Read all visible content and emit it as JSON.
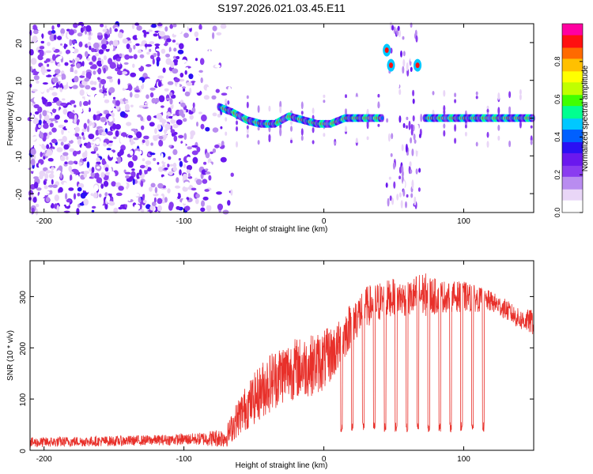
{
  "title": "S197.2026.021.03.45.E11",
  "colors": {
    "snr_line": "#e8302a",
    "cmap": [
      "#ffffff",
      "#e9d6f7",
      "#b98cf0",
      "#8a3cf0",
      "#6a18ee",
      "#2a10f4",
      "#0060ff",
      "#00c8ff",
      "#00ff90",
      "#40ff00",
      "#c0ff00",
      "#ffff00",
      "#ffc000",
      "#ff6a00",
      "#ff1010",
      "#ff00a0"
    ]
  },
  "chart_data": [
    {
      "type": "heatmap",
      "title": "",
      "xlabel": "Height of straight line (km)",
      "ylabel": "Frequency (Hz)",
      "xlim": [
        -210,
        150
      ],
      "ylim": [
        -25,
        25
      ],
      "xticks": [
        -200,
        -100,
        0,
        100
      ],
      "yticks": [
        -20,
        -10,
        0,
        10,
        20
      ],
      "colorbar": {
        "label": "Normalized spectral amplitude",
        "range": [
          0,
          1
        ],
        "ticks": [
          0.0,
          0.2,
          0.4,
          0.6,
          0.8
        ]
      },
      "features": {
        "noise_region_km": [
          -210,
          -75
        ],
        "spectral_line": [
          {
            "x": -75,
            "f": 3
          },
          {
            "x": -65,
            "f": 1.5
          },
          {
            "x": -55,
            "f": -0.5
          },
          {
            "x": -45,
            "f": -1.5
          },
          {
            "x": -35,
            "f": -1.5
          },
          {
            "x": -25,
            "f": 0.5
          },
          {
            "x": -15,
            "f": -0.5
          },
          {
            "x": -5,
            "f": -1.5
          },
          {
            "x": 5,
            "f": -1.5
          },
          {
            "x": 15,
            "f": 0
          },
          {
            "x": 25,
            "f": 0
          },
          {
            "x": 35,
            "f": 0
          },
          {
            "x": 42,
            "f": 0
          }
        ],
        "spectral_line_right": [
          {
            "x": 72,
            "f": 0
          },
          {
            "x": 150,
            "f": 0
          }
        ],
        "gap_region_km": [
          45,
          70
        ],
        "gap_tones": [
          {
            "x": 45,
            "f": 18
          },
          {
            "x": 48,
            "f": 14
          },
          {
            "x": 67,
            "f": 14
          }
        ]
      }
    },
    {
      "type": "line",
      "title": "",
      "xlabel": "Height of straight line (km)",
      "ylabel": "SNR (10 * v/v)",
      "xlim": [
        -210,
        150
      ],
      "ylim": [
        0,
        370
      ],
      "xticks": [
        -200,
        -100,
        0,
        100
      ],
      "yticks": [
        0,
        100,
        200,
        300
      ],
      "series": [
        {
          "name": "SNR",
          "x": [
            -210,
            -180,
            -150,
            -120,
            -90,
            -70,
            -60,
            -50,
            -40,
            -30,
            -20,
            -10,
            0,
            10,
            20,
            30,
            40,
            50,
            60,
            70,
            80,
            90,
            100,
            110,
            120,
            130,
            140,
            150
          ],
          "y": [
            15,
            17,
            18,
            20,
            22,
            25,
            70,
            100,
            130,
            150,
            160,
            165,
            175,
            200,
            250,
            280,
            290,
            300,
            295,
            305,
            300,
            300,
            300,
            295,
            290,
            275,
            255,
            250
          ],
          "noise_amplitude": [
            10,
            10,
            10,
            10,
            12,
            20,
            40,
            50,
            60,
            60,
            60,
            60,
            60,
            50,
            45,
            40,
            40,
            35,
            35,
            45,
            35,
            30,
            30,
            25,
            20,
            20,
            20,
            25
          ],
          "dropout_value": 45,
          "dropout_range_km": [
            12,
            118
          ],
          "dropout_spacing_km": 7.8
        }
      ]
    }
  ]
}
